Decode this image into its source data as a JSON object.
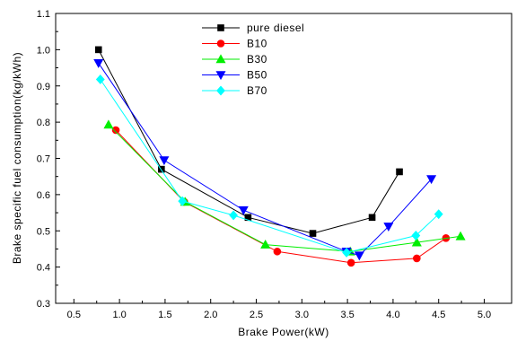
{
  "chart_data": {
    "type": "line",
    "xlabel": "Brake Power(kW)",
    "ylabel": "Brake specific fuel consumption(kg/kWh)",
    "xlim": [
      0.3,
      5.3
    ],
    "ylim": [
      0.3,
      1.1
    ],
    "xticks": [
      "0.5",
      "1.0",
      "1.5",
      "2.0",
      "2.5",
      "3.0",
      "3.5",
      "4.0",
      "4.5",
      "5.0"
    ],
    "yticks": [
      "0.3",
      "0.4",
      "0.5",
      "0.6",
      "0.7",
      "0.8",
      "0.9",
      "1.0",
      "1.1"
    ],
    "legend_position": "top-center",
    "grid": false,
    "series": [
      {
        "name": "pure diesel",
        "color": "#000000",
        "marker": "square",
        "x": [
          0.77,
          1.46,
          2.41,
          3.12,
          3.77,
          4.07
        ],
        "y": [
          1.0,
          0.67,
          0.537,
          0.493,
          0.537,
          0.663
        ]
      },
      {
        "name": "B10",
        "color": "#ff0000",
        "marker": "circle",
        "x": [
          0.96,
          1.71,
          2.73,
          3.54,
          4.26,
          4.58
        ],
        "y": [
          0.778,
          0.58,
          0.443,
          0.412,
          0.424,
          0.48
        ]
      },
      {
        "name": "B30",
        "color": "#00ee00",
        "marker": "triangle-up",
        "x": [
          0.88,
          1.72,
          2.6,
          3.53,
          4.26,
          4.74
        ],
        "y": [
          0.793,
          0.58,
          0.462,
          0.443,
          0.468,
          0.485
        ]
      },
      {
        "name": "B50",
        "color": "#0000ff",
        "marker": "triangle-down",
        "x": [
          0.77,
          1.49,
          2.36,
          3.49,
          3.63,
          3.95,
          4.42
        ],
        "y": [
          0.963,
          0.695,
          0.557,
          0.443,
          0.432,
          0.512,
          0.643
        ]
      },
      {
        "name": "B70",
        "color": "#00ffff",
        "marker": "diamond",
        "x": [
          0.79,
          1.69,
          2.25,
          3.49,
          4.25,
          4.5
        ],
        "y": [
          0.918,
          0.582,
          0.543,
          0.44,
          0.487,
          0.546
        ]
      }
    ]
  }
}
